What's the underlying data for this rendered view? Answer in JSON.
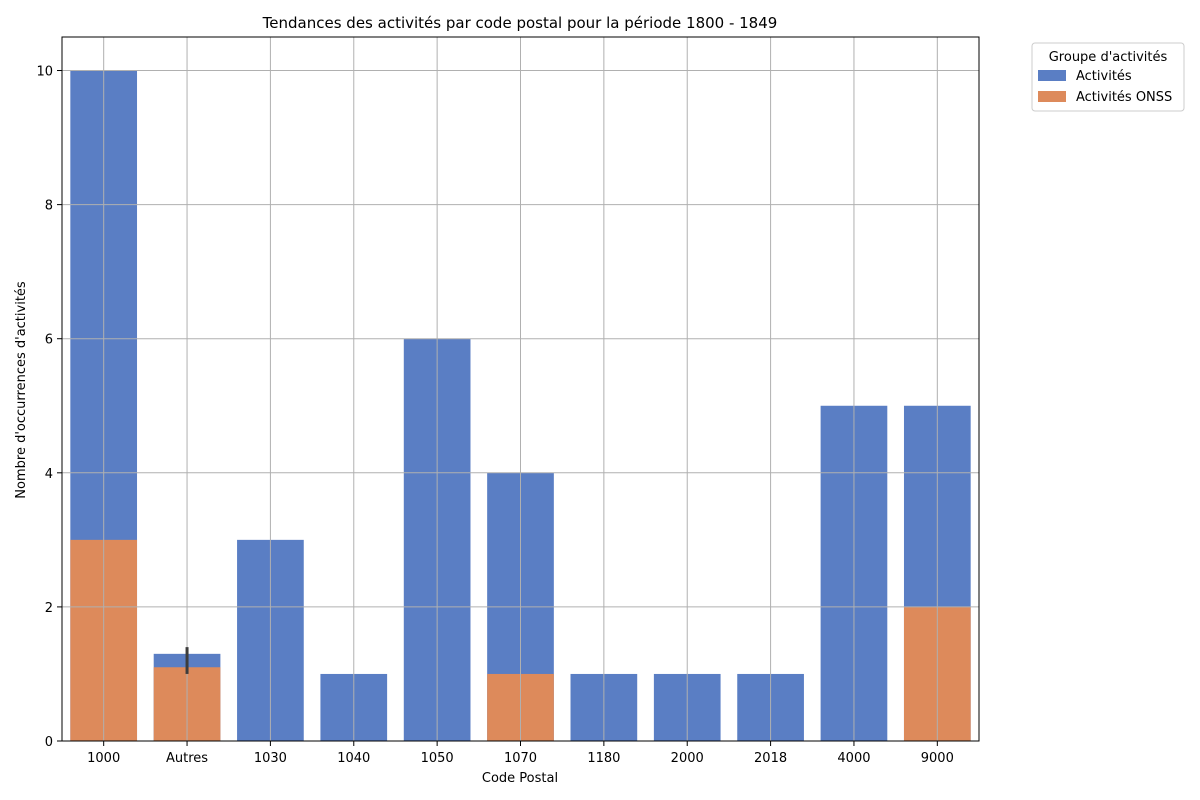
{
  "chart_data": {
    "type": "bar",
    "title": "Tendances des activités par code postal pour la période 1800 - 1849",
    "xlabel": "Code Postal",
    "ylabel": "Nombre d'occurrences d'activités",
    "categories": [
      "1000",
      "Autres",
      "1030",
      "1040",
      "1050",
      "1070",
      "1180",
      "2000",
      "2018",
      "4000",
      "9000"
    ],
    "series": [
      {
        "name": "Activités",
        "color": "#5a7ec4",
        "values": [
          10,
          1.3,
          3,
          1,
          6,
          4,
          1,
          1,
          1,
          5,
          5
        ]
      },
      {
        "name": "Activités ONSS",
        "color": "#dd8a5b",
        "values": [
          3,
          1.1,
          0,
          0,
          0,
          1,
          0,
          0,
          0,
          0,
          2
        ]
      }
    ],
    "error_bars": [
      {
        "category": "Autres",
        "low": 1.0,
        "high": 1.4
      }
    ],
    "ylim": [
      0,
      10.5
    ],
    "yticks": [
      0,
      2,
      4,
      6,
      8,
      10
    ],
    "grid": true,
    "legend": {
      "title": "Groupe d'activités",
      "placement": "outside-top-right"
    }
  }
}
